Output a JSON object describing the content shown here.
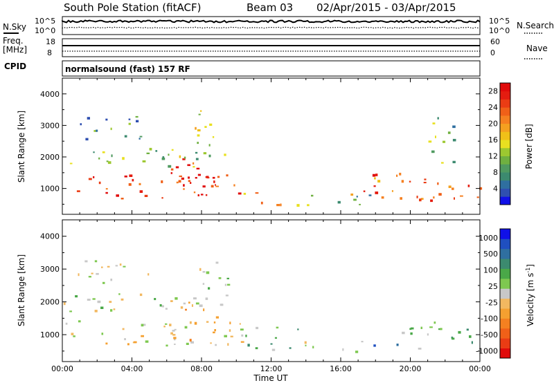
{
  "header": {
    "station": "South Pole Station (fitACF)",
    "beam": "Beam 03",
    "dates": "02/Apr/2015 - 03/Apr/2015"
  },
  "noise_panel": {
    "left_label": "N.Sky",
    "right_label": "N.Search",
    "left_ticks": [
      "10^5",
      "10^0"
    ],
    "right_ticks": [
      "10^5",
      "10^0"
    ]
  },
  "freq_panel": {
    "left_label_line1": "Freq.",
    "left_label_line2": "[MHz]",
    "left_ticks": [
      "18",
      "8"
    ],
    "right_label": "Nave",
    "right_ticks": [
      "60",
      "0"
    ],
    "cpid_label": "CPID"
  },
  "cpid_text": "normalsound (fast) 157 RF",
  "chart_data": [
    {
      "type": "heatmap",
      "title": "Power",
      "ylabel": "Slant Range [km]",
      "ylim": [
        180,
        4500
      ],
      "yticks": [
        1000,
        2000,
        3000,
        4000
      ],
      "xlim": [
        0,
        24
      ],
      "colorbar": {
        "label": "Power [dB]",
        "range": [
          0,
          30
        ],
        "ticks": [
          "4",
          "8",
          "12",
          "16",
          "20",
          "24",
          "28"
        ],
        "colors": [
          "#1010e8",
          "#2f4fb0",
          "#2f6fa0",
          "#3c8a6f",
          "#4f9a60",
          "#6fb040",
          "#9cc830",
          "#e8e020",
          "#f0c018",
          "#f4a020",
          "#f58020",
          "#f06018",
          "#ea3c14",
          "#e41c10",
          "#e00a0a"
        ]
      },
      "structures": [
        {
          "from": 0,
          "to": 10.5,
          "range": [
            650,
            1450
          ],
          "level": 26
        },
        {
          "from": 6.2,
          "to": 9.0,
          "range": [
            800,
            2100
          ],
          "level": 27
        },
        {
          "from": 10.0,
          "to": 13.5,
          "range": [
            500,
            900
          ],
          "level": 18
        },
        {
          "from": 13.5,
          "to": 18.0,
          "range": [
            500,
            850
          ],
          "level": 9
        },
        {
          "from": 16.5,
          "to": 21.5,
          "range": [
            600,
            1500
          ],
          "level": 23
        },
        {
          "from": 20.5,
          "to": 24,
          "range": [
            700,
            1400
          ],
          "level": 22
        },
        {
          "from": 0,
          "to": 9.5,
          "range": [
            1700,
            2300
          ],
          "level": 12
        },
        {
          "from": 0.5,
          "to": 5.0,
          "range": [
            2600,
            3300
          ],
          "level": 8
        },
        {
          "from": 7.5,
          "to": 9.5,
          "range": [
            2400,
            3500
          ],
          "level": 15
        },
        {
          "from": 21.0,
          "to": 22.5,
          "range": [
            1800,
            3400
          ],
          "level": 10
        }
      ]
    },
    {
      "type": "heatmap",
      "title": "Velocity",
      "ylabel": "Slant Range [km]",
      "ylim": [
        180,
        4500
      ],
      "yticks": [
        1000,
        2000,
        3000,
        4000
      ],
      "xlim": [
        0,
        24
      ],
      "colorbar": {
        "label": "Velocity [m s^-1]",
        "range": [
          -1200,
          1200
        ],
        "ticks": [
          "1000",
          "500",
          "100",
          "25",
          "-25",
          "-100",
          "-500",
          "-1000"
        ],
        "colors": [
          "#e00a0a",
          "#ea3c14",
          "#f06018",
          "#f48020",
          "#f5a030",
          "#f2b860",
          "#c8c8c8",
          "#7ec850",
          "#4aa848",
          "#3c8a6f",
          "#2f6fa0",
          "#1f4fc0",
          "#1010e8"
        ]
      },
      "structures": [
        {
          "from": 0,
          "to": 10.5,
          "range": [
            650,
            1450
          ],
          "level": -100
        },
        {
          "from": 6.2,
          "to": 9.0,
          "range": [
            800,
            2100
          ],
          "level": -300
        },
        {
          "from": 10.0,
          "to": 13.5,
          "range": [
            500,
            1300
          ],
          "level": 300
        },
        {
          "from": 13.5,
          "to": 17.5,
          "range": [
            500,
            850
          ],
          "level": 100
        },
        {
          "from": 17.5,
          "to": 19.5,
          "range": [
            700,
            950
          ],
          "level": 900
        },
        {
          "from": 19.5,
          "to": 21.5,
          "range": [
            500,
            1400
          ],
          "level": 200
        },
        {
          "from": 21.0,
          "to": 24,
          "range": [
            700,
            1400
          ],
          "level": 400
        },
        {
          "from": 0,
          "to": 9.5,
          "range": [
            1700,
            2300
          ],
          "level": 60
        },
        {
          "from": 0.5,
          "to": 5.0,
          "range": [
            2600,
            3300
          ],
          "level": -40
        },
        {
          "from": 7.5,
          "to": 9.5,
          "range": [
            2400,
            3500
          ],
          "level": 120
        }
      ]
    }
  ],
  "x_axis": {
    "ticks": [
      "00:00",
      "04:00",
      "08:00",
      "12:00",
      "16:00",
      "20:00",
      "00:00"
    ],
    "label": "Time UT"
  }
}
